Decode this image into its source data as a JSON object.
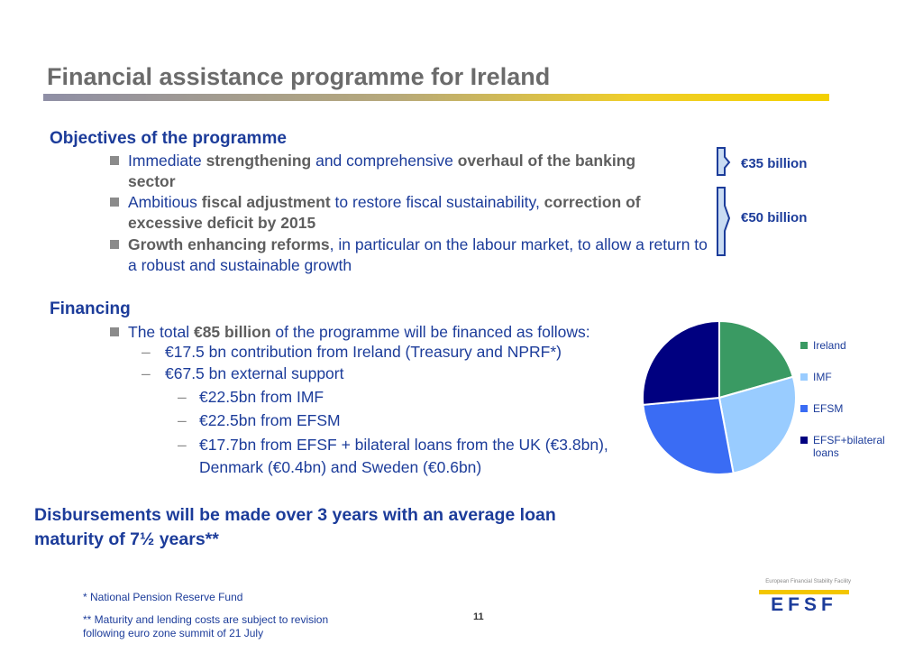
{
  "slide": {
    "title": "Financial assistance programme for Ireland",
    "page_number": "11"
  },
  "objectives": {
    "heading": "Objectives of the programme",
    "bullets": [
      {
        "parts": [
          "Immediate ",
          "strengthening",
          " and comprehensive ",
          "overhaul of the banking",
          " ",
          "sector"
        ]
      },
      {
        "parts": [
          "Ambitious ",
          "fiscal adjustment",
          " to restore fiscal sustainability, ",
          "correction of",
          " ",
          "excessive deficit by 2015"
        ]
      },
      {
        "parts": [
          "Growth enhancing reforms",
          ", in particular on the labour market, to allow a return to a robust and sustainable growth"
        ]
      }
    ]
  },
  "brackets": {
    "first_amount": "€35 billion",
    "second_amount": "€50 billion"
  },
  "financing": {
    "heading": "Financing",
    "intro_before": "The total ",
    "intro_bold": "€85 billion",
    "intro_after": " of the programme will be financed as follows:",
    "level1": [
      "€17.5 bn contribution from Ireland (Treasury and NPRF*)",
      "€67.5 bn external support"
    ],
    "level2": [
      "€22.5bn from IMF",
      "€22.5bn from EFSM",
      "€17.7bn from EFSF + bilateral loans from the UK (€3.8bn),",
      "Denmark (€0.4bn) and Sweden (€0.6bn)"
    ]
  },
  "disbursement": {
    "line1": "Disbursements will be made over 3 years with an average loan",
    "line2": "maturity of 7½ years**"
  },
  "footnotes": {
    "note1": "* National Pension Reserve Fund",
    "note2_line1": "** Maturity and lending costs are subject to revision",
    "note2_line2": "following euro zone summit of 21 July"
  },
  "logo": {
    "caption": "European Financial Stability Facility",
    "text": "EFSF"
  },
  "colors": {
    "ireland": "#3a9a63",
    "imf": "#99ccff",
    "efsm": "#3a6cf4",
    "efsf": "#000080",
    "heading_blue": "#1c3c9a"
  },
  "chart_data": {
    "type": "pie",
    "categories": [
      "Ireland",
      "IMF",
      "EFSM",
      "EFSF+bilateral loans"
    ],
    "values": [
      17.5,
      22.5,
      22.5,
      22.5
    ],
    "legend_position": "right"
  }
}
